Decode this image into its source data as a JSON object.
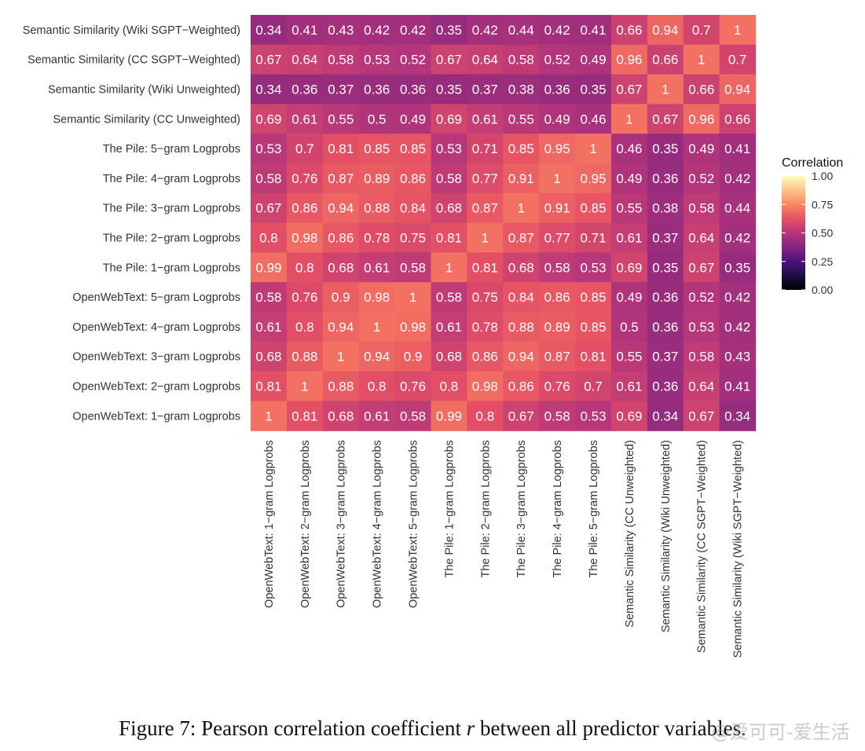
{
  "chart_data": {
    "type": "heatmap",
    "x_categories": [
      "OpenWebText: 1−gram Logprobs",
      "OpenWebText: 2−gram Logprobs",
      "OpenWebText: 3−gram Logprobs",
      "OpenWebText: 4−gram Logprobs",
      "OpenWebText: 5−gram Logprobs",
      "The Pile: 1−gram Logprobs",
      "The Pile: 2−gram Logprobs",
      "The Pile: 3−gram Logprobs",
      "The Pile: 4−gram Logprobs",
      "The Pile: 5−gram Logprobs",
      "Semantic Similarity (CC Unweighted)",
      "Semantic Similarity (Wiki Unweighted)",
      "Semantic Similarity (CC SGPT−Weighted)",
      "Semantic Similarity (Wiki SGPT−Weighted)"
    ],
    "y_categories_top_to_bottom": [
      "Semantic Similarity (Wiki SGPT−Weighted)",
      "Semantic Similarity (CC SGPT−Weighted)",
      "Semantic Similarity (Wiki Unweighted)",
      "Semantic Similarity (CC Unweighted)",
      "The Pile: 5−gram Logprobs",
      "The Pile: 4−gram Logprobs",
      "The Pile: 3−gram Logprobs",
      "The Pile: 2−gram Logprobs",
      "The Pile: 1−gram Logprobs",
      "OpenWebText: 5−gram Logprobs",
      "OpenWebText: 4−gram Logprobs",
      "OpenWebText: 3−gram Logprobs",
      "OpenWebText: 2−gram Logprobs",
      "OpenWebText: 1−gram Logprobs"
    ],
    "values": [
      [
        0.34,
        0.41,
        0.43,
        0.42,
        0.42,
        0.35,
        0.42,
        0.44,
        0.42,
        0.41,
        0.66,
        0.94,
        0.7,
        1
      ],
      [
        0.67,
        0.64,
        0.58,
        0.53,
        0.52,
        0.67,
        0.64,
        0.58,
        0.52,
        0.49,
        0.96,
        0.66,
        1,
        0.7
      ],
      [
        0.34,
        0.36,
        0.37,
        0.36,
        0.36,
        0.35,
        0.37,
        0.38,
        0.36,
        0.35,
        0.67,
        1,
        0.66,
        0.94
      ],
      [
        0.69,
        0.61,
        0.55,
        0.5,
        0.49,
        0.69,
        0.61,
        0.55,
        0.49,
        0.46,
        1,
        0.67,
        0.96,
        0.66
      ],
      [
        0.53,
        0.7,
        0.81,
        0.85,
        0.85,
        0.53,
        0.71,
        0.85,
        0.95,
        1,
        0.46,
        0.35,
        0.49,
        0.41
      ],
      [
        0.58,
        0.76,
        0.87,
        0.89,
        0.86,
        0.58,
        0.77,
        0.91,
        1,
        0.95,
        0.49,
        0.36,
        0.52,
        0.42
      ],
      [
        0.67,
        0.86,
        0.94,
        0.88,
        0.84,
        0.68,
        0.87,
        1,
        0.91,
        0.85,
        0.55,
        0.38,
        0.58,
        0.44
      ],
      [
        0.8,
        0.98,
        0.86,
        0.78,
        0.75,
        0.81,
        1,
        0.87,
        0.77,
        0.71,
        0.61,
        0.37,
        0.64,
        0.42
      ],
      [
        0.99,
        0.8,
        0.68,
        0.61,
        0.58,
        1,
        0.81,
        0.68,
        0.58,
        0.53,
        0.69,
        0.35,
        0.67,
        0.35
      ],
      [
        0.58,
        0.76,
        0.9,
        0.98,
        1,
        0.58,
        0.75,
        0.84,
        0.86,
        0.85,
        0.49,
        0.36,
        0.52,
        0.42
      ],
      [
        0.61,
        0.8,
        0.94,
        1,
        0.98,
        0.61,
        0.78,
        0.88,
        0.89,
        0.85,
        0.5,
        0.36,
        0.53,
        0.42
      ],
      [
        0.68,
        0.88,
        1,
        0.94,
        0.9,
        0.68,
        0.86,
        0.94,
        0.87,
        0.81,
        0.55,
        0.37,
        0.58,
        0.43
      ],
      [
        0.81,
        1,
        0.88,
        0.8,
        0.76,
        0.8,
        0.98,
        0.86,
        0.76,
        0.7,
        0.61,
        0.36,
        0.64,
        0.41
      ],
      [
        1,
        0.81,
        0.68,
        0.61,
        0.58,
        0.99,
        0.8,
        0.67,
        0.58,
        0.53,
        0.69,
        0.34,
        0.67,
        0.34
      ]
    ],
    "legend": {
      "title": "Correlation",
      "ticks": [
        "1.00",
        "0.75",
        "0.50",
        "0.25",
        "0.00"
      ],
      "tick_values": [
        1.0,
        0.75,
        0.5,
        0.25,
        0.0
      ],
      "range": [
        0,
        1
      ],
      "colormap": "magma",
      "placement": "right"
    }
  },
  "caption": {
    "prefix": "Figure 7: Pearson correlation coefficient ",
    "symbol": "r",
    "suffix": " between all predictor variables."
  },
  "watermark": "@爱可可-爱生活"
}
